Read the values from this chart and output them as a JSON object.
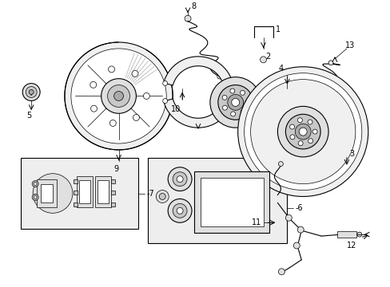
{
  "bg_color": "#ffffff",
  "lc": "#000000",
  "gray1": "#f0f0f0",
  "gray2": "#e0e0e0",
  "gray3": "#c8c8c8",
  "gray4": "#aaaaaa",
  "box_bg": "#eeeeee"
}
